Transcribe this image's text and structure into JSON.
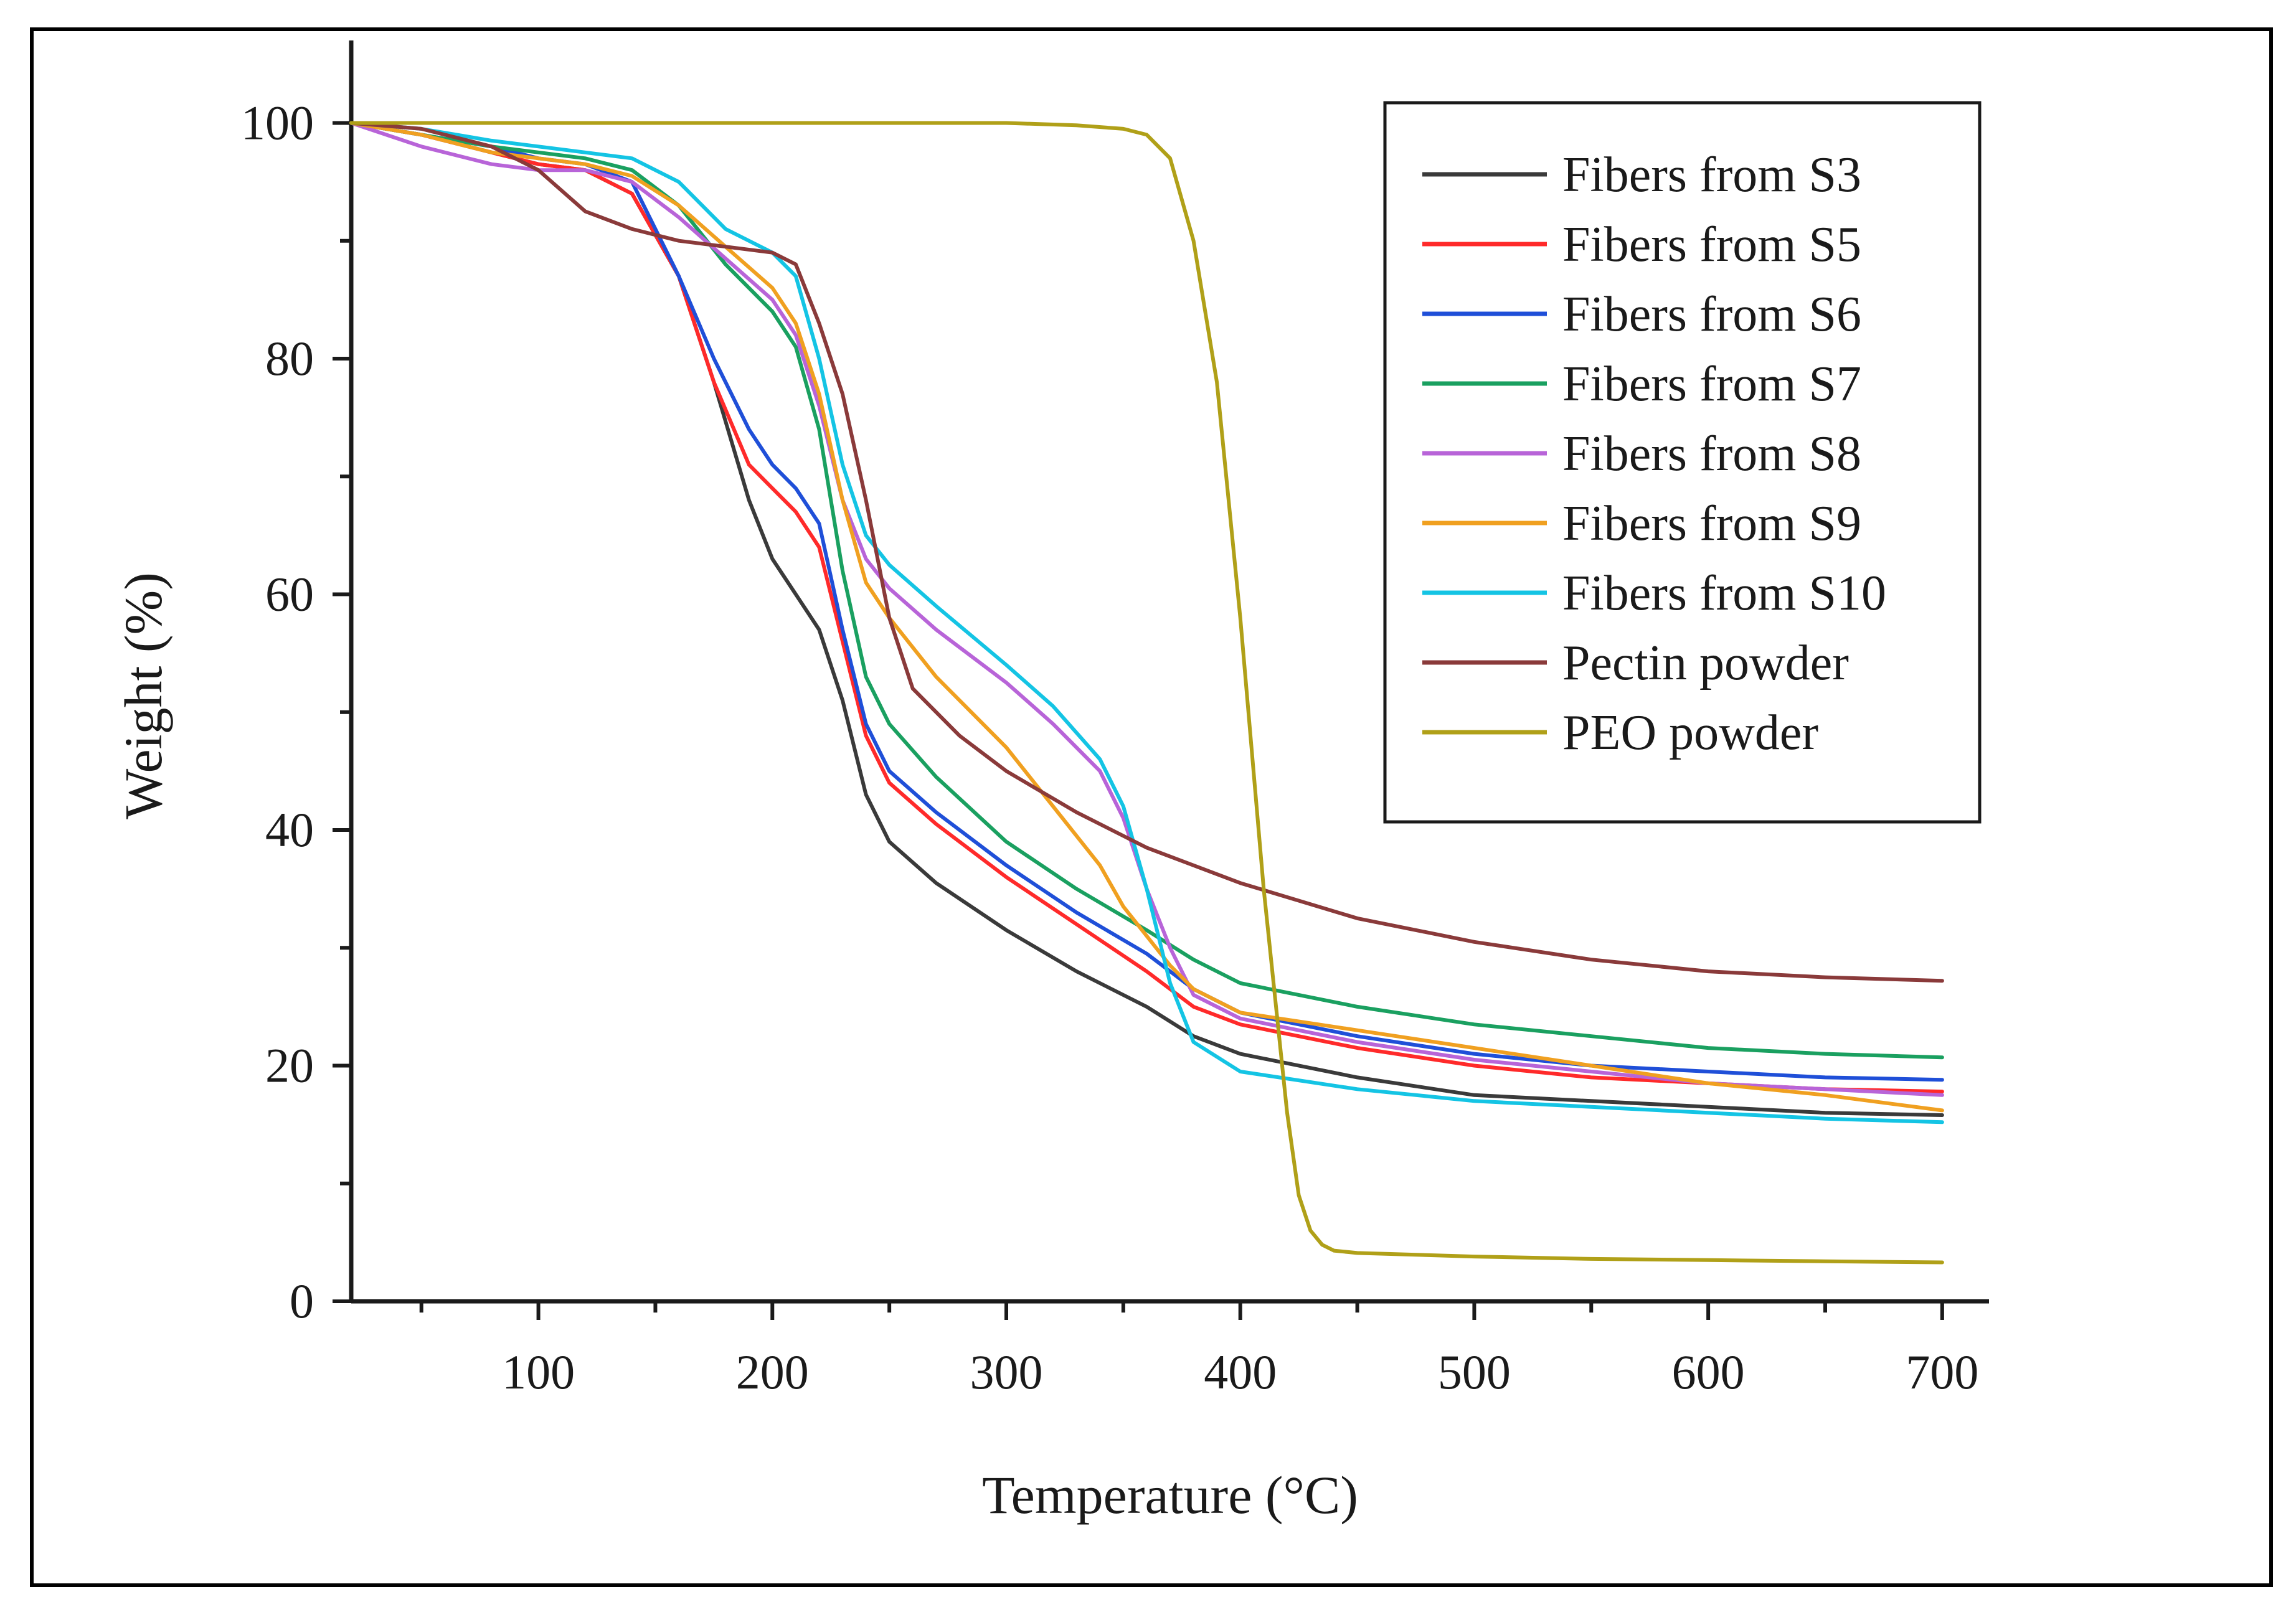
{
  "chart_data": {
    "type": "line",
    "xlabel": "Temperature (°C)",
    "ylabel": "Weight (%)",
    "xlim": [
      20,
      720
    ],
    "ylim": [
      0,
      107
    ],
    "xticks": [
      100,
      200,
      300,
      400,
      500,
      600,
      700
    ],
    "yticks": [
      0,
      20,
      40,
      60,
      80,
      100
    ],
    "xtick_labels": [
      "100",
      "200",
      "300",
      "400",
      "500",
      "600",
      "700"
    ],
    "ytick_labels": [
      "0",
      "20",
      "40",
      "60",
      "80",
      "100"
    ],
    "grid": false,
    "legend_position": "top-right",
    "series": [
      {
        "name": "Fibers from S3",
        "color": "#3a3a3a",
        "x": [
          20,
          50,
          80,
          100,
          120,
          140,
          160,
          175,
          190,
          200,
          210,
          220,
          230,
          240,
          250,
          270,
          300,
          330,
          360,
          380,
          400,
          450,
          500,
          550,
          600,
          650,
          700
        ],
        "y": [
          100,
          99,
          97.5,
          96.5,
          96,
          94,
          87,
          78,
          68,
          63,
          60,
          57,
          51,
          43,
          39,
          35.5,
          31.5,
          28,
          25,
          22.5,
          21,
          19,
          17.5,
          17,
          16.5,
          16,
          15.8
        ]
      },
      {
        "name": "Fibers from S5",
        "color": "#ff2a2a",
        "x": [
          20,
          50,
          80,
          100,
          120,
          140,
          160,
          175,
          190,
          200,
          210,
          220,
          230,
          240,
          250,
          270,
          300,
          330,
          360,
          380,
          400,
          450,
          500,
          550,
          600,
          650,
          700
        ],
        "y": [
          100,
          99,
          97.5,
          96.5,
          96,
          94,
          87,
          78,
          71,
          69,
          67,
          64,
          56,
          48,
          44,
          40.5,
          36,
          32,
          28,
          25,
          23.5,
          21.5,
          20,
          19,
          18.5,
          18,
          17.8
        ]
      },
      {
        "name": "Fibers from S6",
        "color": "#1f4fd8",
        "x": [
          20,
          50,
          80,
          100,
          120,
          140,
          160,
          175,
          190,
          200,
          210,
          220,
          230,
          240,
          250,
          270,
          300,
          330,
          360,
          380,
          400,
          450,
          500,
          550,
          600,
          650,
          700
        ],
        "y": [
          100,
          99,
          98,
          97,
          96.5,
          95,
          87,
          80,
          74,
          71,
          69,
          66,
          57,
          49,
          45,
          41.5,
          37,
          33,
          29.5,
          26.5,
          24.5,
          22.5,
          21,
          20,
          19.5,
          19,
          18.8
        ]
      },
      {
        "name": "Fibers from S7",
        "color": "#1aa060",
        "x": [
          20,
          50,
          80,
          100,
          120,
          140,
          160,
          180,
          200,
          210,
          220,
          230,
          240,
          250,
          270,
          300,
          330,
          360,
          380,
          400,
          450,
          500,
          550,
          600,
          650,
          700
        ],
        "y": [
          100,
          99,
          98,
          97.5,
          97,
          96,
          93,
          88,
          84,
          81,
          74,
          62,
          53,
          49,
          44.5,
          39,
          35,
          31.5,
          29,
          27,
          25,
          23.5,
          22.5,
          21.5,
          21,
          20.7
        ]
      },
      {
        "name": "Fibers from S8",
        "color": "#b864d8",
        "x": [
          20,
          50,
          80,
          100,
          120,
          140,
          160,
          180,
          200,
          210,
          220,
          230,
          240,
          250,
          270,
          300,
          320,
          340,
          350,
          360,
          370,
          380,
          400,
          450,
          500,
          550,
          600,
          650,
          700
        ],
        "y": [
          100,
          98,
          96.5,
          96,
          96,
          95,
          92,
          88.5,
          85,
          82,
          76,
          68,
          63,
          60.5,
          57,
          52.5,
          49,
          45,
          41,
          35,
          30,
          26,
          24,
          22,
          20.5,
          19.5,
          18.5,
          18,
          17.5
        ]
      },
      {
        "name": "Fibers from S9",
        "color": "#f0a020",
        "x": [
          20,
          50,
          80,
          100,
          120,
          140,
          160,
          180,
          200,
          210,
          220,
          230,
          240,
          250,
          270,
          300,
          320,
          340,
          350,
          360,
          370,
          380,
          400,
          450,
          500,
          550,
          600,
          650,
          700
        ],
        "y": [
          100,
          99,
          97.5,
          97,
          96.5,
          95.5,
          93,
          89.5,
          86,
          83,
          77,
          68,
          61,
          58,
          53,
          47,
          42,
          37,
          33.5,
          31,
          28.5,
          26.5,
          24.5,
          23,
          21.5,
          20,
          18.5,
          17.5,
          16.2
        ]
      },
      {
        "name": "Fibers from S10",
        "color": "#14c4e4",
        "x": [
          20,
          50,
          80,
          100,
          120,
          140,
          160,
          180,
          200,
          210,
          220,
          230,
          240,
          250,
          270,
          300,
          320,
          340,
          350,
          360,
          370,
          380,
          400,
          450,
          500,
          550,
          600,
          650,
          700
        ],
        "y": [
          100,
          99.5,
          98.5,
          98,
          97.5,
          97,
          95,
          91,
          89,
          87,
          80,
          71,
          65,
          62.5,
          59,
          54,
          50.5,
          46,
          42,
          35,
          27,
          22,
          19.5,
          18,
          17,
          16.5,
          16,
          15.5,
          15.2
        ]
      },
      {
        "name": "Pectin powder",
        "color": "#8a3a3a",
        "x": [
          20,
          50,
          80,
          100,
          120,
          140,
          160,
          180,
          200,
          210,
          220,
          230,
          240,
          250,
          260,
          280,
          300,
          330,
          360,
          400,
          450,
          500,
          550,
          600,
          650,
          700
        ],
        "y": [
          100,
          99.5,
          98,
          96,
          92.5,
          91,
          90,
          89.5,
          89,
          88,
          83,
          77,
          68,
          58,
          52,
          48,
          45,
          41.5,
          38.5,
          35.5,
          32.5,
          30.5,
          29,
          28,
          27.5,
          27.2
        ]
      },
      {
        "name": "PEO powder",
        "color": "#b0a018",
        "x": [
          20,
          100,
          200,
          300,
          330,
          350,
          360,
          370,
          380,
          390,
          400,
          410,
          420,
          425,
          430,
          435,
          440,
          450,
          500,
          550,
          600,
          650,
          700
        ],
        "y": [
          100,
          100,
          100,
          100,
          99.8,
          99.5,
          99,
          97,
          90,
          78,
          58,
          35,
          16,
          9,
          6,
          4.8,
          4.3,
          4.1,
          3.8,
          3.6,
          3.5,
          3.4,
          3.3
        ]
      }
    ]
  }
}
